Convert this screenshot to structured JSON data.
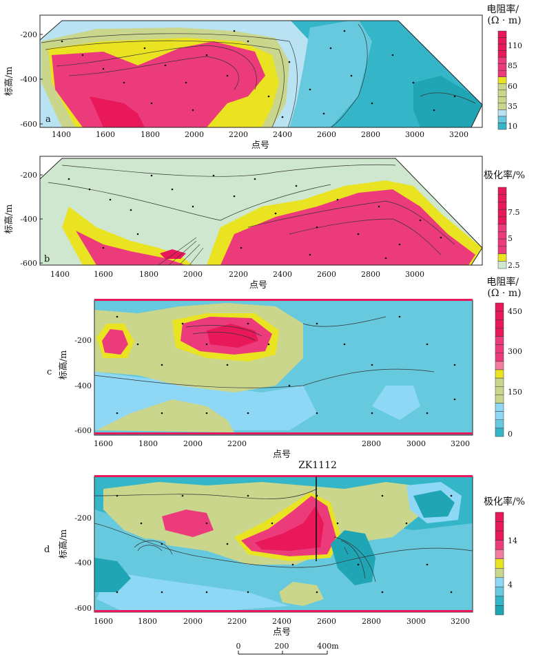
{
  "panels": [
    {
      "letter": "a",
      "xlabel": "点号",
      "ylabel": "标高/m",
      "xticks": [
        "1400",
        "1600",
        "1800",
        "2000",
        "2200",
        "2400",
        "2600",
        "2800",
        "3000",
        "3200"
      ],
      "yticks": [
        "-200",
        "-400",
        "-600"
      ],
      "legend_title": "电阻率/\n(Ω · m)",
      "legend_ticks": [
        "110",
        "85",
        "60",
        "35",
        "10"
      ],
      "legend_colors": [
        "#e8185a",
        "#e8185a",
        "#e8185a",
        "#e8185a",
        "#ec3b7a",
        "#ec3b7a",
        "#ec3b7a",
        "#e9e322",
        "#c9d68c",
        "#c9d68c",
        "#c9d68c",
        "#c9d68c",
        "#b9e3f3",
        "#66c9dd",
        "#35b6c8"
      ]
    },
    {
      "letter": "b",
      "xlabel": "点号",
      "ylabel": "标高/m",
      "xticks": [
        "1400",
        "1600",
        "1800",
        "2000",
        "2200",
        "2400",
        "2600",
        "2800",
        "3000"
      ],
      "yticks": [
        "-200",
        "-400",
        "-600"
      ],
      "legend_title": "极化率/%",
      "legend_ticks": [
        "7.5",
        "5",
        "2.5"
      ],
      "legend_colors": [
        "#e8185a",
        "#e8185a",
        "#e8185a",
        "#e8185a",
        "#e8185a",
        "#ec3b7a",
        "#ec3b7a",
        "#ec3b7a",
        "#ec3b7a",
        "#e9e322",
        "#cfe7cf"
      ]
    },
    {
      "letter": "c",
      "xlabel": "点号",
      "ylabel": "标高/m",
      "xticks": [
        "1600",
        "1800",
        "2000",
        "2200",
        "2800",
        "3000",
        "3200"
      ],
      "yticks": [
        "-200",
        "-400",
        "-600"
      ],
      "legend_title": "电阻率/\n(Ω · m)",
      "legend_ticks": [
        "450",
        "300",
        "150",
        "0"
      ],
      "legend_colors": [
        "#e8185a",
        "#e8185a",
        "#e8185a",
        "#e8185a",
        "#ec3b7a",
        "#ec3b7a",
        "#ec3b7a",
        "#f07ca0",
        "#e9e322",
        "#c9d68c",
        "#c9d68c",
        "#c9d68c",
        "#8fd8f5",
        "#8fd8f5",
        "#66c9dd",
        "#35b6c8"
      ]
    },
    {
      "letter": "d",
      "xlabel": "点号",
      "ylabel": "标高/m",
      "xticks": [
        "1600",
        "1800",
        "2000",
        "2200",
        "2400",
        "2600",
        "2800",
        "3000",
        "3200"
      ],
      "yticks": [
        "-200",
        "-400",
        "-600"
      ],
      "legend_title": "极化率/%",
      "legend_ticks": [
        "14",
        "4"
      ],
      "legend_colors": [
        "#e8185a",
        "#e8185a",
        "#e8185a",
        "#ec3b7a",
        "#f07ca0",
        "#e9e322",
        "#c9d68c",
        "#8fd8f5",
        "#66c9dd",
        "#35b6c8",
        "#20a5b5"
      ],
      "borehole": "ZK1112"
    }
  ],
  "scale_bar": {
    "labels": [
      "0",
      "200",
      "400m"
    ]
  },
  "colors": {
    "red": "#e8185a",
    "pink": "#ec3b7a",
    "yellow": "#e9e322",
    "olive": "#c9d68c",
    "pale": "#cfe7cf",
    "lightblue": "#b9e3f3",
    "skyblue": "#8fd8f5",
    "blue": "#66c9dd",
    "teal": "#35b6c8",
    "darkteal": "#20a5b5"
  },
  "chart_data": [
    {
      "type": "heatmap",
      "panel": "a",
      "quantity": "电阻率/(Ω · m)",
      "colorbar_ticks": [
        110,
        85,
        60,
        35,
        10
      ],
      "x_range": [
        1300,
        3300
      ],
      "y_range": [
        -620,
        -120
      ]
    },
    {
      "type": "heatmap",
      "panel": "b",
      "quantity": "极化率/%",
      "colorbar_ticks": [
        7.5,
        5,
        2.5
      ],
      "x_range": [
        1300,
        3300
      ],
      "y_range": [
        -620,
        -120
      ]
    },
    {
      "type": "heatmap",
      "panel": "c",
      "quantity": "电阻率/(Ω · m)",
      "colorbar_ticks": [
        450,
        300,
        150,
        0
      ],
      "x_range": [
        1550,
        3250
      ],
      "y_range": [
        -620,
        -30
      ]
    },
    {
      "type": "heatmap",
      "panel": "d",
      "quantity": "极化率/%",
      "colorbar_ticks": [
        14,
        4
      ],
      "x_range": [
        1550,
        3250
      ],
      "y_range": [
        -620,
        -30
      ],
      "annotation": "ZK1112"
    }
  ]
}
